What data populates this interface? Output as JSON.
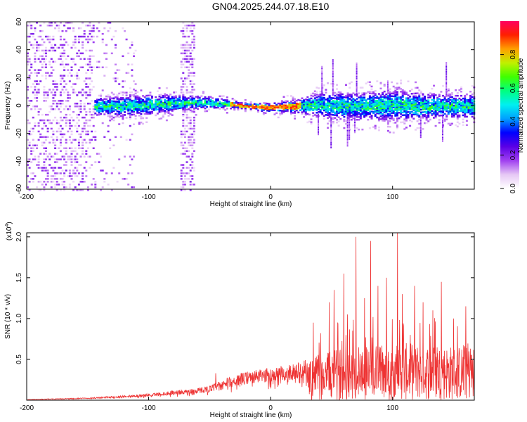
{
  "title": "GN04.2025.244.07.18.E10",
  "chart_data": [
    {
      "type": "heatmap",
      "xlabel": "Height of straight line (km)",
      "ylabel": "Frequency (Hz)",
      "xlim": [
        -200,
        167
      ],
      "ylim": [
        -60,
        60
      ],
      "xticks": [
        -200,
        -100,
        0,
        100
      ],
      "yticks": [
        60,
        40,
        20,
        0,
        -20,
        -40,
        -60
      ],
      "colorbar": {
        "label": "Normalized spectral amplitude",
        "range": [
          0.0,
          1.0
        ],
        "ticks": [
          0.0,
          0.2,
          0.4,
          0.6,
          0.8
        ],
        "colors": [
          "#ffffff",
          "#e6c8f5",
          "#a040f0",
          "#5a00e6",
          "#0000ff",
          "#00a0ff",
          "#00f0f0",
          "#00ff80",
          "#40ff00",
          "#c0f000",
          "#ffa000",
          "#ff2000",
          "#ff0060"
        ]
      },
      "band": {
        "center_x": [
          -145,
          -120,
          -100,
          -80,
          -60,
          -40,
          -20,
          0,
          20,
          40,
          60,
          80,
          100,
          120,
          140,
          167
        ],
        "center_y": [
          0,
          0,
          1,
          2,
          3,
          2,
          0,
          -1,
          0,
          1,
          0,
          0,
          1,
          0,
          0,
          0
        ],
        "half_width": [
          5,
          6,
          6,
          5,
          4,
          3,
          2,
          3,
          4,
          7,
          8,
          8,
          9,
          8,
          7,
          7
        ]
      },
      "noise_regions": [
        {
          "x": [
            -200,
            -145
          ],
          "y": [
            -60,
            60
          ]
        },
        {
          "x": [
            -75,
            -63
          ],
          "y": [
            -60,
            60
          ]
        }
      ]
    },
    {
      "type": "line",
      "xlabel": "Height of straight line (km)",
      "ylabel": "SNR (10 * v/v)",
      "y_scale_label": "(x10",
      "y_scale_exp": "4",
      "y_scale_close": ")",
      "xlim": [
        -200,
        167
      ],
      "ylim": [
        0,
        2.05
      ],
      "xticks": [
        -200,
        -100,
        0,
        100
      ],
      "yticks": [
        0.5,
        1.0,
        1.5,
        2.0
      ],
      "ytick_labels": [
        "0.5",
        "1.0",
        "1.5",
        "2.0"
      ],
      "envelope": {
        "x": [
          -200,
          -150,
          -100,
          -80,
          -60,
          -50,
          -40,
          -30,
          -20,
          0,
          10,
          20,
          30,
          40,
          50,
          60,
          80,
          100,
          120,
          140,
          167
        ],
        "y": [
          0.01,
          0.03,
          0.08,
          0.12,
          0.15,
          0.18,
          0.25,
          0.3,
          0.35,
          0.4,
          0.42,
          0.45,
          0.5,
          0.55,
          0.6,
          0.65,
          0.7,
          0.7,
          0.7,
          0.68,
          0.65
        ]
      },
      "peaks": [
        {
          "x": -45,
          "y": 0.33
        },
        {
          "x": 35,
          "y": 0.95
        },
        {
          "x": 48,
          "y": 1.2
        },
        {
          "x": 52,
          "y": 1.35
        },
        {
          "x": 60,
          "y": 1.55
        },
        {
          "x": 63,
          "y": 1.05
        },
        {
          "x": 70,
          "y": 2.0
        },
        {
          "x": 77,
          "y": 1.25
        },
        {
          "x": 82,
          "y": 1.95
        },
        {
          "x": 88,
          "y": 1.4
        },
        {
          "x": 95,
          "y": 1.5
        },
        {
          "x": 104,
          "y": 2.05
        },
        {
          "x": 108,
          "y": 1.3
        },
        {
          "x": 118,
          "y": 1.4
        },
        {
          "x": 125,
          "y": 1.2
        },
        {
          "x": 133,
          "y": 1.1
        },
        {
          "x": 140,
          "y": 1.45
        },
        {
          "x": 150,
          "y": 1.0
        },
        {
          "x": 160,
          "y": 1.15
        }
      ],
      "color": "#ee3333"
    }
  ]
}
